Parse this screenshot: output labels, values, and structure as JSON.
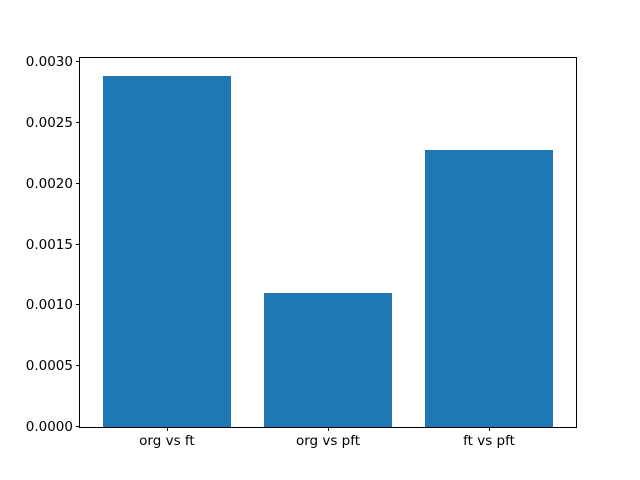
{
  "chart_data": {
    "type": "bar",
    "title": "",
    "xlabel": "",
    "ylabel": "",
    "categories": [
      "org vs ft",
      "org vs pft",
      "ft vs pft"
    ],
    "values": [
      0.00289,
      0.0011,
      0.00228
    ],
    "bar_color": "#1f77b4",
    "bar_width": 0.8,
    "xlim": [
      -0.54,
      2.54
    ],
    "ylim": [
      0,
      0.003035
    ],
    "yticks": [
      0.0,
      0.0005,
      0.001,
      0.0015,
      0.002,
      0.0025,
      0.003
    ],
    "ytick_labels": [
      "0.0000",
      "0.0005",
      "0.0010",
      "0.0015",
      "0.0020",
      "0.0025",
      "0.0030"
    ],
    "grid": false,
    "legend": null,
    "background_color": "#ffffff",
    "spine_color": "#000000",
    "text_color": "#000000"
  }
}
